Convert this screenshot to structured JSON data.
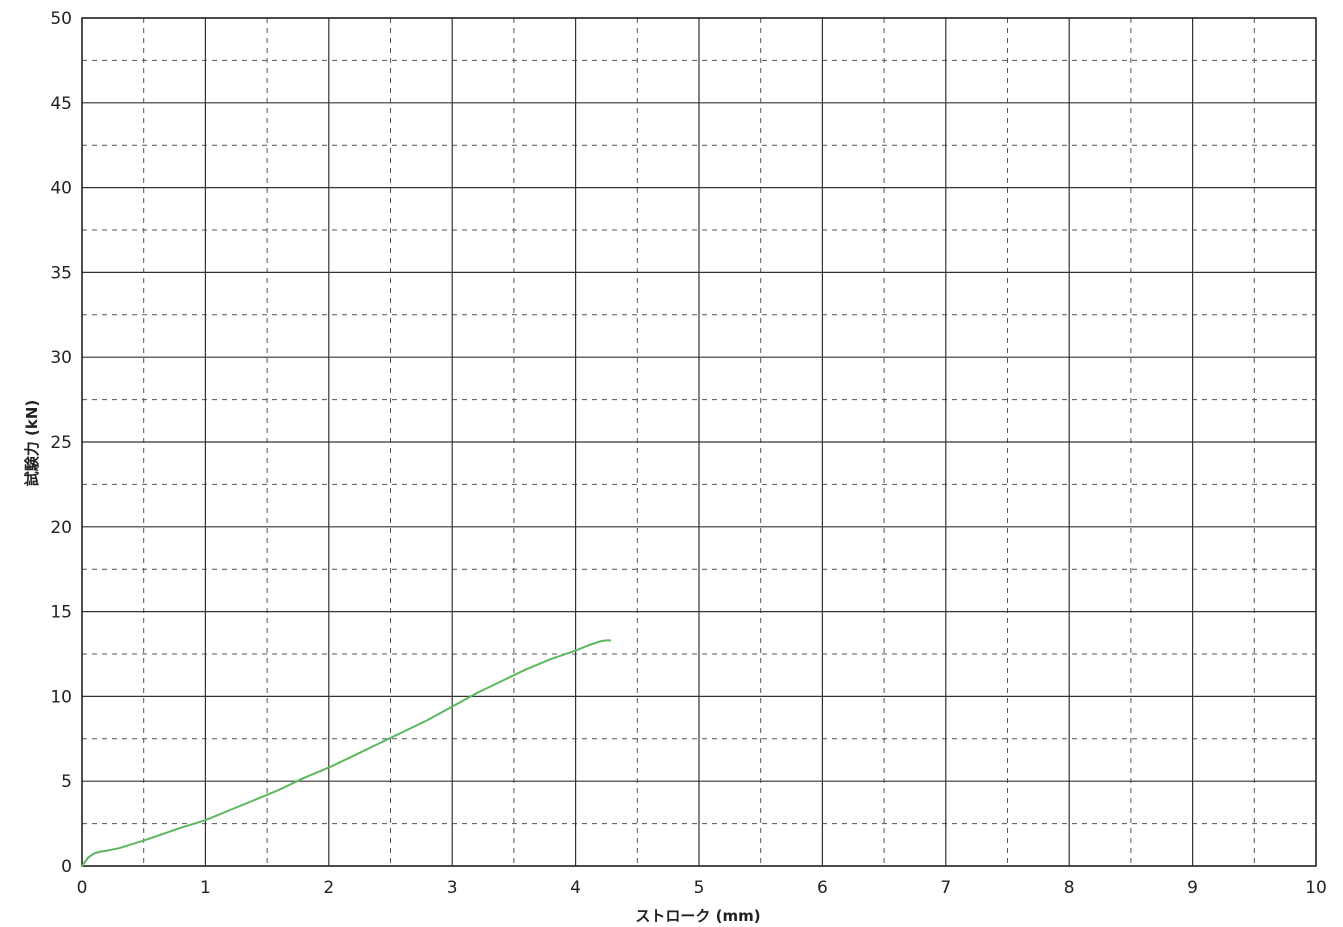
{
  "chart_data": {
    "type": "line",
    "title": "",
    "xlabel": "ストローク (mm)",
    "ylabel": "試験力 (kN)",
    "xlim": [
      0,
      10
    ],
    "ylim": [
      0,
      50
    ],
    "x_ticks": [
      "0",
      "1",
      "2",
      "3",
      "4",
      "5",
      "6",
      "7",
      "8",
      "9",
      "10"
    ],
    "y_ticks": [
      "0",
      "5",
      "10",
      "15",
      "20",
      "25",
      "30",
      "35",
      "40",
      "45",
      "50"
    ],
    "grid": {
      "major": "solid",
      "minor": "dashed"
    },
    "series": [
      {
        "color": "#5cb85c",
        "x": [
          0,
          0.05,
          0.1,
          0.15,
          0.2,
          0.3,
          0.5,
          0.7,
          0.8,
          1.0,
          1.2,
          1.4,
          1.6,
          1.8,
          2.0,
          2.2,
          2.4,
          2.6,
          2.8,
          3.0,
          3.2,
          3.4,
          3.6,
          3.8,
          4.0,
          4.1,
          4.2,
          4.25,
          4.28
        ],
        "y": [
          0,
          0.5,
          0.75,
          0.85,
          0.9,
          1.05,
          1.5,
          2.0,
          2.25,
          2.7,
          3.3,
          3.9,
          4.5,
          5.2,
          5.8,
          6.5,
          7.2,
          7.9,
          8.6,
          9.4,
          10.2,
          10.9,
          11.6,
          12.2,
          12.7,
          13.0,
          13.25,
          13.3,
          13.3
        ]
      }
    ]
  }
}
